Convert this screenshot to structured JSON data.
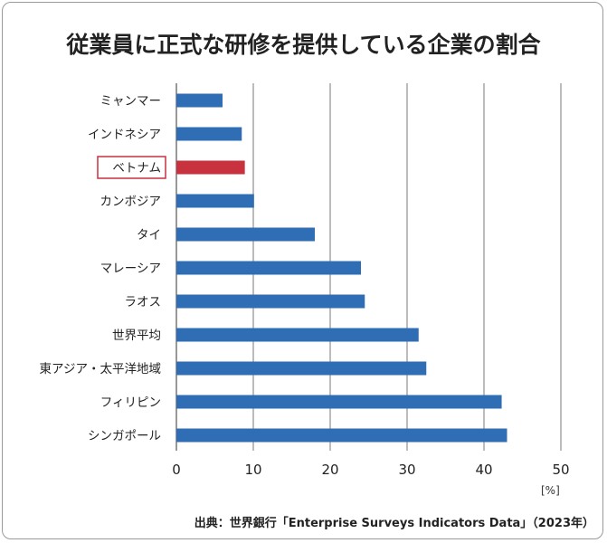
{
  "title": "従業員に正式な研修を提供している企業の割合",
  "unit_label": "[%]",
  "source": "出典：世界銀行「Enterprise Surveys Indicators Data」（2023年）",
  "colors": {
    "bar": "#2f6db5",
    "highlight": "#c8313e",
    "grid": "#7a7a7a"
  },
  "chart_data": {
    "type": "bar",
    "orientation": "horizontal",
    "categories": [
      "ミャンマー",
      "インドネシア",
      "ベトナム",
      "カンボジア",
      "タイ",
      "マレーシア",
      "ラオス",
      "世界平均",
      "東アジア・太平洋地域",
      "フィリピン",
      "シンガポール"
    ],
    "values": [
      6.0,
      8.5,
      8.9,
      10.1,
      18.0,
      24.0,
      24.5,
      31.5,
      32.5,
      42.3,
      43.0
    ],
    "highlight_category": "ベトナム",
    "xlim": [
      0,
      50
    ],
    "xticks": [
      0,
      10,
      20,
      30,
      40,
      50
    ],
    "xlabel": "",
    "ylabel": "",
    "grid": true
  }
}
